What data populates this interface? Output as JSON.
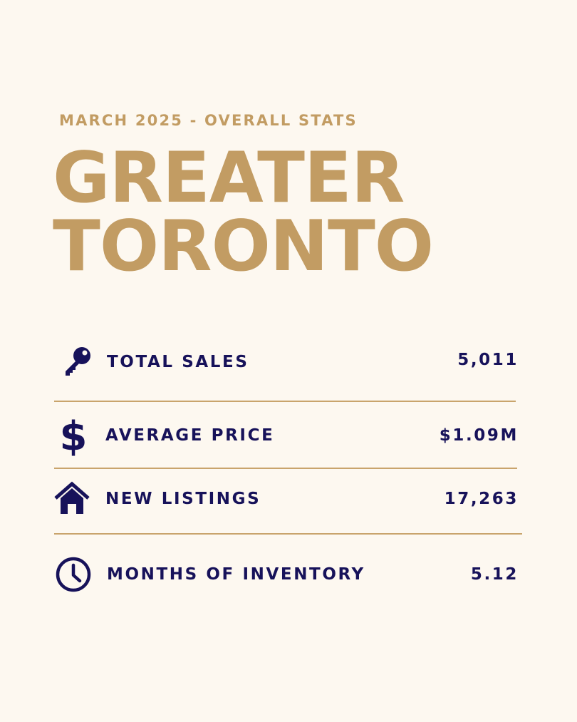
{
  "header": {
    "subtitle": "MARCH 2025 - OVERALL STATS",
    "title_line1": "GREATER",
    "title_line2": "TORONTO"
  },
  "colors": {
    "accent": "#c29c63",
    "text": "#17125a",
    "background": "#fdf8f0",
    "divider": "#c9a46c"
  },
  "stats": [
    {
      "icon": "key-icon",
      "label": "TOTAL SALES",
      "value": "5,011"
    },
    {
      "icon": "dollar-icon",
      "label": "AVERAGE PRICE",
      "value": "$1.09M"
    },
    {
      "icon": "house-icon",
      "label": "NEW LISTINGS",
      "value": "17,263"
    },
    {
      "icon": "clock-icon",
      "label": "MONTHS OF INVENTORY",
      "value": "5.12"
    }
  ]
}
